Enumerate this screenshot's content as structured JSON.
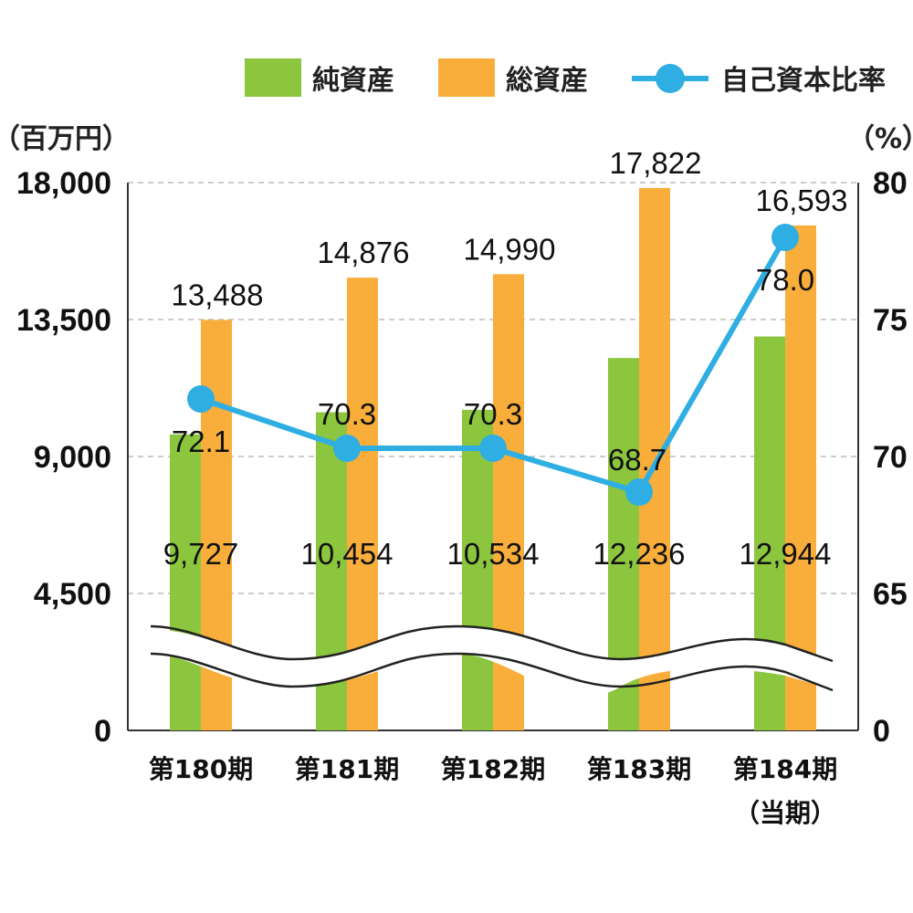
{
  "chart_data": {
    "type": "bar",
    "categories": [
      "第180期",
      "第181期",
      "第182期",
      "第183期",
      "第184期"
    ],
    "category_sublabels": [
      "",
      "",
      "",
      "",
      "（当期）"
    ],
    "series": [
      {
        "name": "純資産",
        "kind": "bar",
        "axis": "left",
        "color": "#8cc63f",
        "values": [
          9727,
          10454,
          10534,
          12236,
          12944
        ]
      },
      {
        "name": "総資産",
        "kind": "bar",
        "axis": "left",
        "color": "#f9ae3b",
        "values": [
          13488,
          14876,
          14990,
          17822,
          16593
        ]
      },
      {
        "name": "自己資本比率",
        "kind": "line",
        "axis": "right",
        "color": "#2eaee2",
        "values": [
          72.1,
          70.3,
          70.3,
          68.7,
          78.0
        ]
      }
    ],
    "value_labels": {
      "net_assets": [
        "9,727",
        "10,454",
        "10,534",
        "12,236",
        "12,944"
      ],
      "total_assets": [
        "13,488",
        "14,876",
        "14,990",
        "17,822",
        "16,593"
      ],
      "equity_ratio": [
        "72.1",
        "70.3",
        "70.3",
        "68.7",
        "78.0"
      ]
    },
    "left_axis": {
      "unit": "（百万円）",
      "ticks": [
        "18,000",
        "13,500",
        "9,000",
        "4,500",
        "0"
      ],
      "tick_values": [
        18000,
        13500,
        9000,
        4500,
        0
      ],
      "ylim": [
        0,
        18000
      ]
    },
    "right_axis": {
      "unit": "（%）",
      "ticks": [
        "80",
        "75",
        "70",
        "65",
        "0"
      ],
      "tick_values": [
        80,
        75,
        70,
        65,
        0
      ],
      "ylim": [
        60,
        80
      ],
      "broken": true
    },
    "grid": "horizontal-dashed",
    "legend_position": "top-right"
  }
}
